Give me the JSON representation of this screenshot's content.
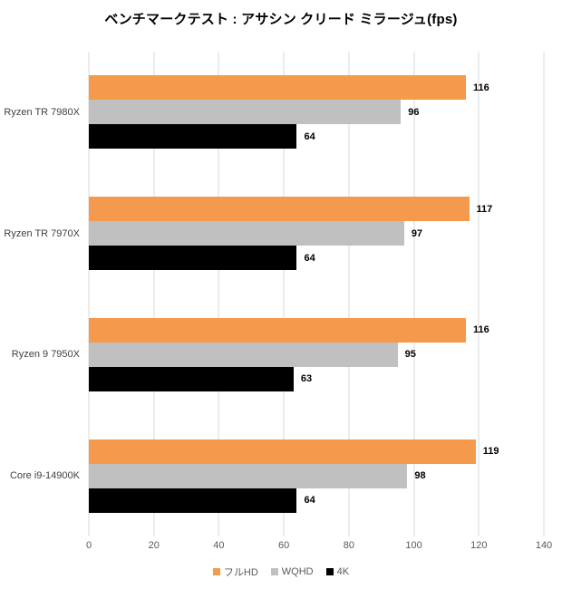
{
  "title": "ベンチマークテスト : アサシン クリード ミラージュ(fps)",
  "chart_data": {
    "type": "bar",
    "orientation": "horizontal",
    "title": "ベンチマークテスト : アサシン クリード ミラージュ(fps)",
    "categories": [
      "Ryzen TR 7980X",
      "Ryzen TR 7970X",
      "Ryzen 9 7950X",
      "Core i9-14900K"
    ],
    "series": [
      {
        "name": "フルHD",
        "color": "#F5994D",
        "values": [
          116,
          117,
          116,
          119
        ]
      },
      {
        "name": "WQHD",
        "color": "#C0C0C0",
        "values": [
          96,
          97,
          95,
          98
        ]
      },
      {
        "name": "4K",
        "color": "#000000",
        "values": [
          64,
          64,
          63,
          64
        ]
      }
    ],
    "xlim": [
      0,
      140
    ],
    "xticks": [
      0,
      20,
      40,
      60,
      80,
      100,
      120,
      140
    ],
    "grid": true,
    "legend_position": "bottom"
  },
  "colors": {
    "gridline": "#D9D9D9",
    "tick_label": "#595959",
    "category_label": "#404040",
    "value_label": "#000000",
    "legend_label": "#595959",
    "background": "#FFFFFF"
  }
}
